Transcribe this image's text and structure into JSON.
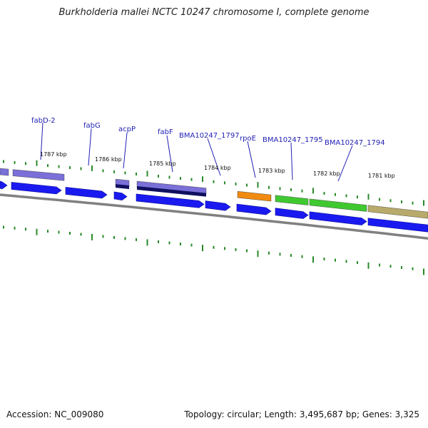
{
  "title": "Burkholderia mallei NCTC 10247 chromosome I, complete genome",
  "footer": {
    "accession": "Accession: NC_009080",
    "topology": "Topology: circular; Length: 3,495,687 bp; Genes: 3,325"
  },
  "colors": {
    "forward_gene": "#1a1af0",
    "reverse_purple": "#7a70d8",
    "reverse_navy": "#101060",
    "orange": "#f08a10",
    "green": "#40c830",
    "olive": "#b8aa6a",
    "backbone": "#808080",
    "tick": "#2a8a2a",
    "label": "#1f1fb4"
  },
  "ticks": [
    {
      "label": "1787 kbp"
    },
    {
      "label": "1786 kbp"
    },
    {
      "label": "1785 kbp"
    },
    {
      "label": "1784 kbp"
    },
    {
      "label": "1783 kbp"
    },
    {
      "label": "1782 kbp"
    },
    {
      "label": "1781 kbp"
    }
  ],
  "genes": [
    {
      "label": "fabD-2"
    },
    {
      "label": "fabG"
    },
    {
      "label": "acpP"
    },
    {
      "label": "fabF"
    },
    {
      "label": "BMA10247_1797"
    },
    {
      "label": "rpoE"
    },
    {
      "label": "BMA10247_1795"
    },
    {
      "label": "BMA10247_1794"
    }
  ]
}
